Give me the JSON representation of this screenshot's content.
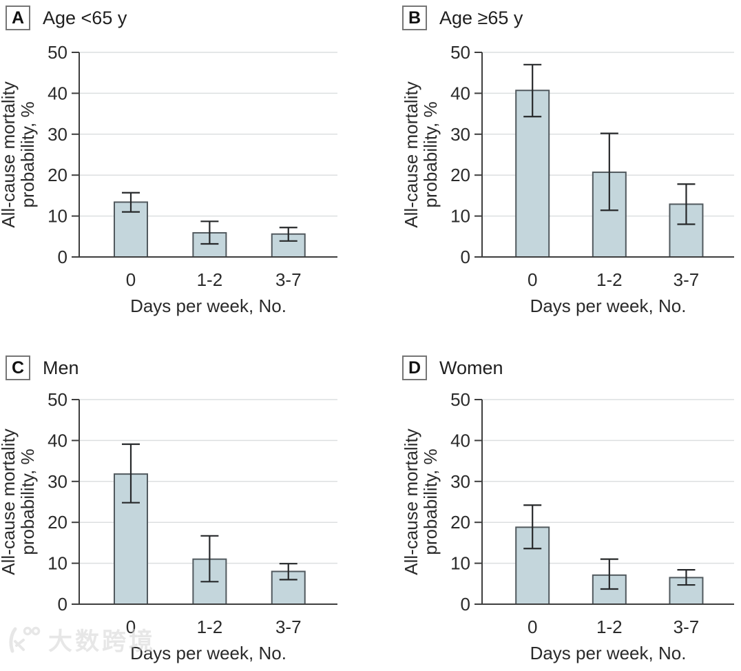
{
  "figure": {
    "x_axis_label": "Days per week, No.",
    "y_axis_label": "All-cause mortality probability, %",
    "categories": [
      "0",
      "1-2",
      "3-7"
    ]
  },
  "colors": {
    "bar_fill": "#c4d6dc",
    "bar_border": "#51595e",
    "error_bar": "#26282a",
    "gridline": "#dcdfe0",
    "axis": "#3d3d3d",
    "text": "#2a2a2a"
  },
  "watermark": {
    "text": "大数跨境",
    "logo": "k100-logo"
  },
  "chart_data": [
    {
      "type": "bar",
      "panel_label": "A",
      "title": "Age <65 y",
      "categories": [
        "0",
        "1-2",
        "3-7"
      ],
      "values": [
        13.4,
        5.9,
        5.6
      ],
      "ci_low": [
        11.0,
        3.2,
        3.9
      ],
      "ci_high": [
        15.7,
        8.7,
        7.2
      ],
      "xlabel": "Days per week, No.",
      "ylabel": "All-cause mortality probability, %",
      "ylabel_lines": [
        "All-cause mortality",
        "probability, %"
      ],
      "ylim": [
        0,
        50
      ],
      "yticks": [
        0,
        10,
        20,
        30,
        40,
        50
      ],
      "grid": true,
      "error_bars": true
    },
    {
      "type": "bar",
      "panel_label": "B",
      "title": "Age ≥65 y",
      "categories": [
        "0",
        "1-2",
        "3-7"
      ],
      "values": [
        40.7,
        20.7,
        12.9
      ],
      "ci_low": [
        34.3,
        11.4,
        8.0
      ],
      "ci_high": [
        47.0,
        30.2,
        17.8
      ],
      "xlabel": "Days per week, No.",
      "ylabel": "All-cause mortality probability, %",
      "ylabel_lines": [
        "All-cause mortality",
        "probability, %"
      ],
      "ylim": [
        0,
        50
      ],
      "yticks": [
        0,
        10,
        20,
        30,
        40,
        50
      ],
      "grid": true,
      "error_bars": true
    },
    {
      "type": "bar",
      "panel_label": "C",
      "title": "Men",
      "categories": [
        "0",
        "1-2",
        "3-7"
      ],
      "values": [
        31.8,
        11.0,
        8.0
      ],
      "ci_low": [
        24.8,
        5.5,
        6.0
      ],
      "ci_high": [
        39.1,
        16.7,
        9.9
      ],
      "xlabel": "Days per week, No.",
      "ylabel": "All-cause mortality probability, %",
      "ylabel_lines": [
        "All-cause mortality",
        "probability, %"
      ],
      "ylim": [
        0,
        50
      ],
      "yticks": [
        0,
        10,
        20,
        30,
        40,
        50
      ],
      "grid": true,
      "error_bars": true
    },
    {
      "type": "bar",
      "panel_label": "D",
      "title": "Women",
      "categories": [
        "0",
        "1-2",
        "3-7"
      ],
      "values": [
        18.8,
        7.1,
        6.5
      ],
      "ci_low": [
        13.6,
        3.7,
        4.7
      ],
      "ci_high": [
        24.2,
        11.0,
        8.4
      ],
      "xlabel": "Days per week, No.",
      "ylabel": "All-cause mortality probability, %",
      "ylabel_lines": [
        "All-cause mortality",
        "probability, %"
      ],
      "ylim": [
        0,
        50
      ],
      "yticks": [
        0,
        10,
        20,
        30,
        40,
        50
      ],
      "grid": true,
      "error_bars": true
    }
  ]
}
